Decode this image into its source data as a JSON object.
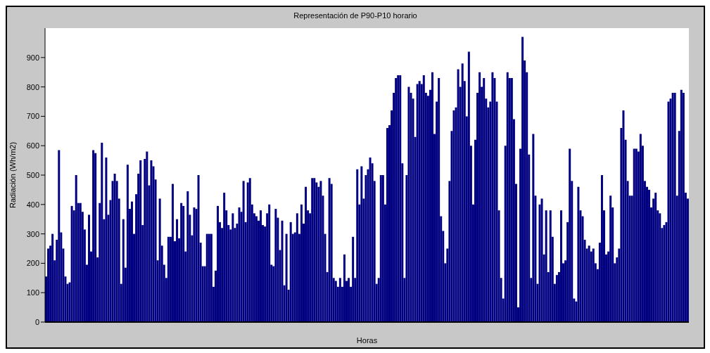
{
  "chart_data": {
    "type": "bar",
    "title": "Representación de P90-P10 horario",
    "xlabel": "Horas",
    "ylabel": "Radiación (Wh/m2)",
    "categories": [
      null,
      null,
      null,
      null,
      null,
      null,
      null,
      null,
      null,
      null,
      null,
      null,
      null,
      null,
      null,
      null,
      null,
      null,
      null,
      null,
      null,
      null,
      null,
      null,
      null,
      null,
      null,
      null,
      null,
      null,
      null,
      null,
      null,
      null,
      null,
      null,
      null,
      null,
      null,
      null,
      null,
      null,
      null,
      null,
      null,
      null,
      null,
      null,
      null,
      null,
      null,
      null,
      null,
      null,
      null,
      null,
      null,
      null,
      null,
      null,
      null,
      null,
      null,
      null,
      null,
      null,
      null,
      null,
      null,
      null,
      null,
      null,
      null,
      null,
      null,
      null,
      null,
      null,
      null,
      null,
      null,
      null,
      null,
      null,
      null,
      null,
      null,
      null,
      null,
      null,
      null,
      null,
      null,
      null,
      null,
      null,
      null,
      null,
      null,
      null,
      null,
      null,
      null,
      null,
      null,
      null,
      null,
      null,
      null,
      null,
      null,
      null,
      null,
      null,
      null,
      null,
      null,
      null,
      null,
      null,
      null,
      null,
      null,
      null,
      null,
      null,
      null,
      null,
      null,
      null,
      null,
      null,
      null,
      null,
      null,
      null,
      null,
      null,
      null,
      null,
      null,
      null,
      null,
      null,
      null,
      null,
      null,
      null,
      null,
      null,
      null,
      null,
      null,
      null,
      null,
      null,
      null,
      null,
      null,
      null,
      null,
      null,
      null,
      null,
      null,
      null,
      null,
      null,
      null,
      null,
      null,
      null,
      null,
      null,
      null,
      null,
      null,
      null,
      null,
      null,
      null,
      null,
      null,
      null,
      null,
      null,
      null,
      null,
      null,
      null,
      null,
      null,
      null,
      null,
      null,
      null,
      null,
      null,
      null,
      null,
      null,
      null,
      null,
      null,
      null,
      null,
      null,
      null,
      null,
      null,
      null,
      null,
      null,
      null,
      null,
      null,
      null,
      null,
      null,
      null,
      null,
      null,
      null,
      null,
      null,
      null,
      null,
      null,
      null,
      null,
      null,
      null,
      null,
      null,
      null,
      null,
      null,
      null,
      null,
      null,
      null,
      null,
      null,
      null,
      null,
      null,
      null,
      null,
      null,
      null,
      null,
      null,
      null,
      null,
      null,
      null,
      null,
      null,
      null,
      null,
      null,
      null,
      null,
      null,
      null,
      null,
      null,
      null,
      null,
      null,
      null,
      null,
      null,
      null,
      null,
      null,
      null,
      null,
      null,
      null,
      null,
      null,
      null,
      null,
      null,
      null,
      null,
      null,
      null,
      null,
      null,
      null,
      null,
      null,
      null,
      null,
      null,
      null,
      null,
      null
    ],
    "series": [
      {
        "color": "#000080",
        "values": [
          155,
          250,
          260,
          300,
          210,
          280,
          585,
          305,
          250,
          155,
          130,
          135,
          395,
          380,
          500,
          405,
          405,
          375,
          315,
          195,
          365,
          240,
          585,
          575,
          220,
          405,
          610,
          350,
          560,
          365,
          415,
          480,
          505,
          480,
          420,
          130,
          350,
          185,
          535,
          385,
          410,
          300,
          435,
          505,
          550,
          330,
          555,
          580,
          465,
          550,
          530,
          485,
          210,
          420,
          260,
          195,
          150,
          290,
          290,
          470,
          275,
          350,
          285,
          405,
          395,
          240,
          445,
          365,
          295,
          390,
          385,
          500,
          270,
          190,
          190,
          300,
          300,
          300,
          120,
          175,
          395,
          340,
          320,
          440,
          380,
          330,
          315,
          370,
          320,
          335,
          390,
          375,
          480,
          340,
          475,
          490,
          400,
          370,
          360,
          345,
          380,
          330,
          325,
          370,
          400,
          195,
          190,
          385,
          355,
          245,
          345,
          125,
          300,
          110,
          340,
          300,
          305,
          370,
          300,
          400,
          335,
          460,
          380,
          370,
          490,
          490,
          475,
          460,
          480,
          430,
          300,
          170,
          490,
          470,
          150,
          140,
          120,
          150,
          120,
          230,
          140,
          150,
          120,
          290,
          150,
          520,
          400,
          530,
          420,
          500,
          520,
          560,
          540,
          480,
          130,
          150,
          500,
          500,
          400,
          660,
          670,
          720,
          780,
          830,
          840,
          840,
          540,
          150,
          500,
          800,
          780,
          760,
          630,
          810,
          820,
          810,
          840,
          780,
          770,
          790,
          850,
          640,
          750,
          830,
          360,
          310,
          200,
          250,
          480,
          650,
          720,
          730,
          860,
          800,
          880,
          820,
          700,
          920,
          600,
          400,
          620,
          780,
          850,
          800,
          830,
          760,
          730,
          750,
          850,
          830,
          750,
          380,
          150,
          80,
          600,
          850,
          830,
          830,
          690,
          470,
          50,
          590,
          970,
          890,
          850,
          570,
          150,
          640,
          430,
          130,
          400,
          420,
          230,
          380,
          170,
          380,
          290,
          130,
          160,
          170,
          380,
          200,
          210,
          340,
          590,
          480,
          80,
          70,
          460,
          380,
          360,
          280,
          250,
          260,
          240,
          250,
          200,
          180,
          270,
          500,
          380,
          230,
          240,
          430,
          390,
          200,
          220,
          250,
          660,
          720,
          620,
          480,
          430,
          430,
          590,
          590,
          580,
          640,
          600,
          480,
          460,
          450,
          390,
          420,
          440,
          380,
          370,
          320,
          330,
          340,
          750,
          760,
          780,
          780,
          430,
          650,
          790,
          780,
          440,
          420
        ]
      }
    ],
    "ylim": [
      0,
      1000
    ],
    "yticks": [
      0,
      100,
      200,
      300,
      400,
      500,
      600,
      700,
      800,
      900
    ]
  }
}
